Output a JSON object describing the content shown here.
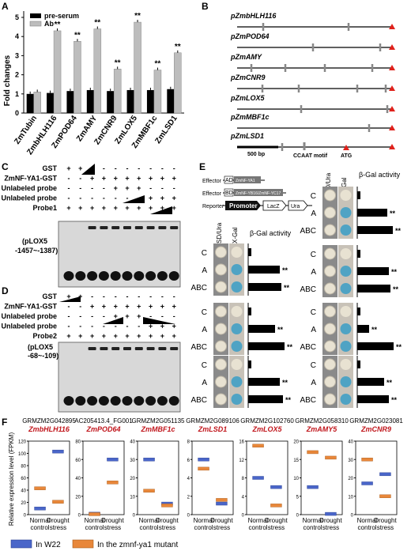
{
  "panels": {
    "A": "A",
    "B": "B",
    "C": "C",
    "D": "D",
    "E": "E",
    "F": "F"
  },
  "panelA": {
    "legend": [
      "pre-serum",
      "Ab"
    ],
    "ylabel": "Fold changes",
    "sig": "**"
  },
  "panelB": {
    "genes": [
      "pZmbHLH116",
      "pZmPOD64",
      "pZmAMY",
      "pZmCNR9",
      "pZmLOX5",
      "pZmMBF1c",
      "pZmLSD1"
    ],
    "scale": "500 bp",
    "ccaat": "CCAAT motif",
    "atg": "ATG"
  },
  "panelC": {
    "rows": [
      "GST",
      "ZmNF-YA1-GST",
      "Unlabeled probe",
      "Unlabeled probe",
      "Probe1"
    ],
    "probe_note1": "(pLOX5",
    "probe_note2": "-1457~-1387)",
    "signs": [
      [
        "+",
        "+",
        "-",
        "-",
        "-",
        "-",
        "-",
        "-",
        "-",
        "-"
      ],
      [
        "-",
        "-",
        "+",
        "+",
        "+",
        "+",
        "+",
        "+",
        "+",
        "+"
      ],
      [
        "-",
        "-",
        "-",
        "-",
        "+",
        "+",
        "+",
        "-",
        "-",
        "-"
      ],
      [
        "-",
        "-",
        "-",
        "-",
        "-",
        "-",
        "-",
        "+",
        "+",
        "+"
      ],
      [
        "+",
        "+",
        "+",
        "+",
        "+",
        "+",
        "+",
        "+",
        "+",
        "+"
      ]
    ]
  },
  "panelD": {
    "rows": [
      "GST",
      "ZmNF-YA1-GST",
      "Unlabeled probe",
      "Unlabeled probe",
      "Probe2"
    ],
    "probe_note1": "(pLOX5",
    "probe_note2": "-68~-109)",
    "signs": [
      [
        "+",
        "+",
        "-",
        "-",
        "-",
        "-",
        "-",
        "-",
        "-",
        "-"
      ],
      [
        "-",
        "-",
        "+",
        "+",
        "+",
        "+",
        "+",
        "+",
        "+",
        "+"
      ],
      [
        "-",
        "-",
        "-",
        "-",
        "+",
        "+",
        "+",
        "-",
        "-",
        "-"
      ],
      [
        "-",
        "-",
        "-",
        "-",
        "-",
        "-",
        "-",
        "+",
        "+",
        "+"
      ],
      [
        "+",
        "+",
        "+",
        "+",
        "+",
        "+",
        "+",
        "+",
        "+",
        "+"
      ]
    ]
  },
  "panelE": {
    "effector1_lbl": "Effector",
    "effector1_ad": "AD",
    "effector1_gene": "ZmNF-YA1",
    "effector2_lbl": "Effector",
    "effector2_bd": "BD",
    "effector2_gene": "ZmNF-YB16/ZmNF-YC17",
    "reporter_lbl": "Reporter",
    "promoter": "Promoter",
    "lacz": "LacZ",
    "ura": "Ura",
    "sdura": "SD/Ura",
    "xgal": "X-Gal",
    "bgal": "β-Gal activity",
    "rowlabels": [
      "C",
      "A",
      "ABC"
    ],
    "sig": "**"
  },
  "panelF": {
    "ylabel": "Relative expression level (FPKM)",
    "xcats": [
      "Normal control",
      "Drought stress"
    ],
    "legend": [
      "In W22",
      "In the zmnf-ya1 mutant"
    ],
    "colors": {
      "w22": "#4a66c9",
      "mutant": "#e8873a"
    }
  },
  "chart_data": [
    {
      "type": "bar",
      "categories": [
        "ZmTubin",
        "ZmbHLH116",
        "ZmPOD64",
        "ZmAMY",
        "ZmCNR9",
        "ZmLOX5",
        "ZmMBF1c",
        "ZmLSD1"
      ],
      "series": [
        {
          "name": "pre-serum",
          "values": [
            1.0,
            1.05,
            1.15,
            1.2,
            1.15,
            1.2,
            1.2,
            1.25
          ]
        },
        {
          "name": "Ab",
          "values": [
            1.1,
            4.3,
            3.75,
            4.4,
            2.3,
            4.75,
            2.25,
            3.15
          ]
        }
      ],
      "ylabel": "Fold changes",
      "ylim": [
        0,
        5
      ],
      "yticks": [
        0,
        1,
        2,
        3,
        4,
        5
      ],
      "significance": [
        "",
        "**",
        "**",
        "**",
        "**",
        "**",
        "**",
        "**"
      ],
      "colors": {
        "pre-serum": "#000000",
        "Ab": "#bdbdbd"
      }
    },
    {
      "type": "box",
      "ylabel": "Relative expression level (FPKM)",
      "categories": [
        "Normal control",
        "Drought stress"
      ],
      "series_names": [
        "In W22",
        "In the zmnf-ya1 mutant"
      ],
      "plots": [
        {
          "id": "GRMZM2G042895",
          "gene": "ZmbHLH116",
          "ylim": [
            0,
            120
          ],
          "yticks": [
            0,
            20,
            40,
            60,
            80,
            100,
            120
          ],
          "w22": [
            10,
            103
          ],
          "mutant": [
            43,
            21
          ]
        },
        {
          "id": "AC205413.4_FG001",
          "gene": "ZmPOD64",
          "ylim": [
            0,
            80
          ],
          "yticks": [
            0,
            20,
            40,
            60,
            80
          ],
          "w22": [
            1,
            60
          ],
          "mutant": [
            0.5,
            35
          ]
        },
        {
          "id": "GRMZM2G051135",
          "gene": "ZmMBF1c",
          "ylim": [
            0,
            40
          ],
          "yticks": [
            0,
            10,
            20,
            30,
            40
          ],
          "w22": [
            30,
            6
          ],
          "mutant": [
            13,
            5
          ]
        },
        {
          "id": "GRMZM2G089106",
          "gene": "ZmLSD1",
          "ylim": [
            0,
            8
          ],
          "yticks": [
            0,
            2,
            4,
            6,
            8
          ],
          "w22": [
            6,
            1.2
          ],
          "mutant": [
            5,
            1.6
          ]
        },
        {
          "id": "GRMZM2G102760",
          "gene": "ZmLOX5",
          "ylim": [
            0,
            16
          ],
          "yticks": [
            0,
            4,
            8,
            12,
            16
          ],
          "w22": [
            8,
            6
          ],
          "mutant": [
            15,
            2
          ]
        },
        {
          "id": "GRMZM2G058310",
          "gene": "ZmAMY5",
          "ylim": [
            0,
            20
          ],
          "yticks": [
            0,
            5,
            10,
            15,
            20
          ],
          "w22": [
            7.5,
            0.2
          ],
          "mutant": [
            17,
            15.5
          ]
        },
        {
          "id": "GRMZM2G023081",
          "gene": "ZmCNR9",
          "ylim": [
            0,
            40
          ],
          "yticks": [
            0,
            10,
            20,
            30,
            40
          ],
          "w22": [
            17,
            22
          ],
          "mutant": [
            30,
            10
          ]
        }
      ]
    }
  ]
}
